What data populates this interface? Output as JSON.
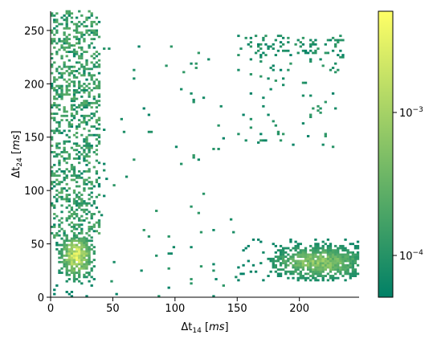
{
  "chart_data": {
    "type": "heatmap",
    "xlabel": "Δt14   [ms]",
    "ylabel": "Δt24   [ms]",
    "xlim": [
      0,
      248
    ],
    "ylim": [
      0,
      268
    ],
    "x_ticks": [
      0,
      50,
      100,
      150,
      200
    ],
    "y_ticks": [
      0,
      50,
      100,
      150,
      200,
      250
    ],
    "scale": "log",
    "colormap": "summer",
    "colorbar": {
      "scale": "log",
      "range": [
        5e-05,
        0.005
      ],
      "tick_labels": [
        "10^-3",
        "10^-4"
      ],
      "tick_values": [
        0.001,
        0.0001
      ]
    },
    "bin_width": 2,
    "color_low": "#008066",
    "color_high": "#ffff66",
    "density_clusters": [
      {
        "region": "bottom-left",
        "x_range": [
          0,
          35
        ],
        "y_range": [
          0,
          55
        ],
        "peak": 0.005,
        "center": [
          20,
          38
        ]
      },
      {
        "region": "left-vertical",
        "x_range": [
          0,
          40
        ],
        "y_range": [
          55,
          268
        ],
        "peak": 0.0003
      },
      {
        "region": "bottom-right",
        "x_range": [
          150,
          248
        ],
        "y_range": [
          15,
          55
        ],
        "peak": 0.0012,
        "center": [
          215,
          32
        ]
      },
      {
        "region": "top-right",
        "x_range": [
          150,
          235
        ],
        "y_range": [
          140,
          245
        ],
        "peak": 0.0001
      },
      {
        "region": "sparse",
        "x_range": [
          40,
          150
        ],
        "y_range": [
          0,
          240
        ],
        "peak": 0.0001
      }
    ]
  }
}
